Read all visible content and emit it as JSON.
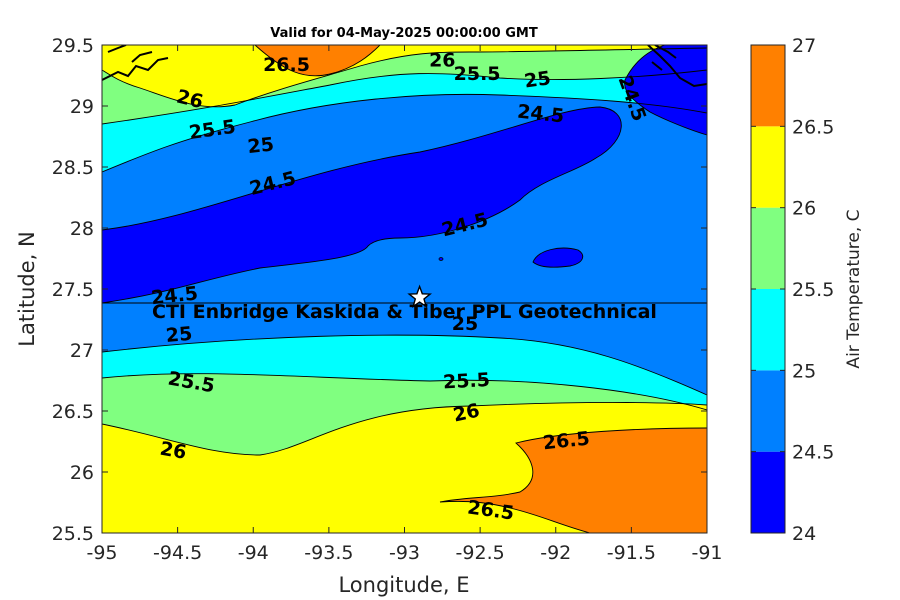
{
  "title": "Valid for 04-May-2025 00:00:00 GMT",
  "xlabel": "Longitude, E",
  "ylabel": "Latitude, N",
  "colorbar_label": "Air Temperature, C",
  "site_label": "CTI Enbridge  Kaskida & Tiber PPL Geotechnical",
  "chart_data": {
    "type": "heatmap",
    "title": "Valid for 04-May-2025 00:00:00 GMT",
    "xlabel": "Longitude, E",
    "ylabel": "Latitude, N",
    "xlim": [
      -95,
      -91
    ],
    "ylim": [
      25.5,
      29.5
    ],
    "xticks": [
      "-95",
      "-94.5",
      "-94",
      "-93.5",
      "-93",
      "-92.5",
      "-92",
      "-91.5",
      "-91"
    ],
    "yticks": [
      "25.5",
      "26",
      "26.5",
      "27",
      "27.5",
      "28",
      "28.5",
      "29",
      "29.5"
    ],
    "colorbar": {
      "label": "Air Temperature, C",
      "levels": [
        24,
        24.5,
        25,
        25.5,
        26,
        26.5,
        27
      ],
      "tick_labels": [
        "24",
        "24.5",
        "25",
        "25.5",
        "26",
        "26.5",
        "27"
      ],
      "colors": [
        "#0000ff",
        "#0080ff",
        "#00ffff",
        "#80ff80",
        "#ffff00",
        "#ff8000",
        "#ff0000"
      ]
    },
    "marker": {
      "shape": "star",
      "lon": -92.9,
      "lat": 27.43,
      "label": "CTI Enbridge  Kaskida & Tiber PPL Geotechnical"
    },
    "contour_labels": [
      {
        "text": "26.5",
        "lon": -93.78,
        "lat": 29.33
      },
      {
        "text": "26",
        "lon": -92.75,
        "lat": 29.37
      },
      {
        "text": "25.5",
        "lon": -92.52,
        "lat": 29.26
      },
      {
        "text": "25",
        "lon": -92.12,
        "lat": 29.21
      },
      {
        "text": "26",
        "lon": -94.42,
        "lat": 29.05
      },
      {
        "text": "25.5",
        "lon": -94.27,
        "lat": 28.8
      },
      {
        "text": "25",
        "lon": -93.95,
        "lat": 28.67
      },
      {
        "text": "24.5",
        "lon": -92.1,
        "lat": 28.93
      },
      {
        "text": "24.5",
        "lon": -91.5,
        "lat": 29.06
      },
      {
        "text": "24.5",
        "lon": -93.87,
        "lat": 28.36
      },
      {
        "text": "24.5",
        "lon": -92.6,
        "lat": 28.02
      },
      {
        "text": "24.5",
        "lon": -94.52,
        "lat": 27.44
      },
      {
        "text": "25",
        "lon": -94.49,
        "lat": 27.12
      },
      {
        "text": "25",
        "lon": -92.6,
        "lat": 27.21
      },
      {
        "text": "25.5",
        "lon": -94.41,
        "lat": 26.73
      },
      {
        "text": "25.5",
        "lon": -92.59,
        "lat": 26.74
      },
      {
        "text": "26",
        "lon": -92.59,
        "lat": 26.48
      },
      {
        "text": "26",
        "lon": -94.53,
        "lat": 26.17
      },
      {
        "text": "26.5",
        "lon": -91.93,
        "lat": 26.25
      },
      {
        "text": "26.5",
        "lon": -92.43,
        "lat": 25.68
      }
    ]
  }
}
